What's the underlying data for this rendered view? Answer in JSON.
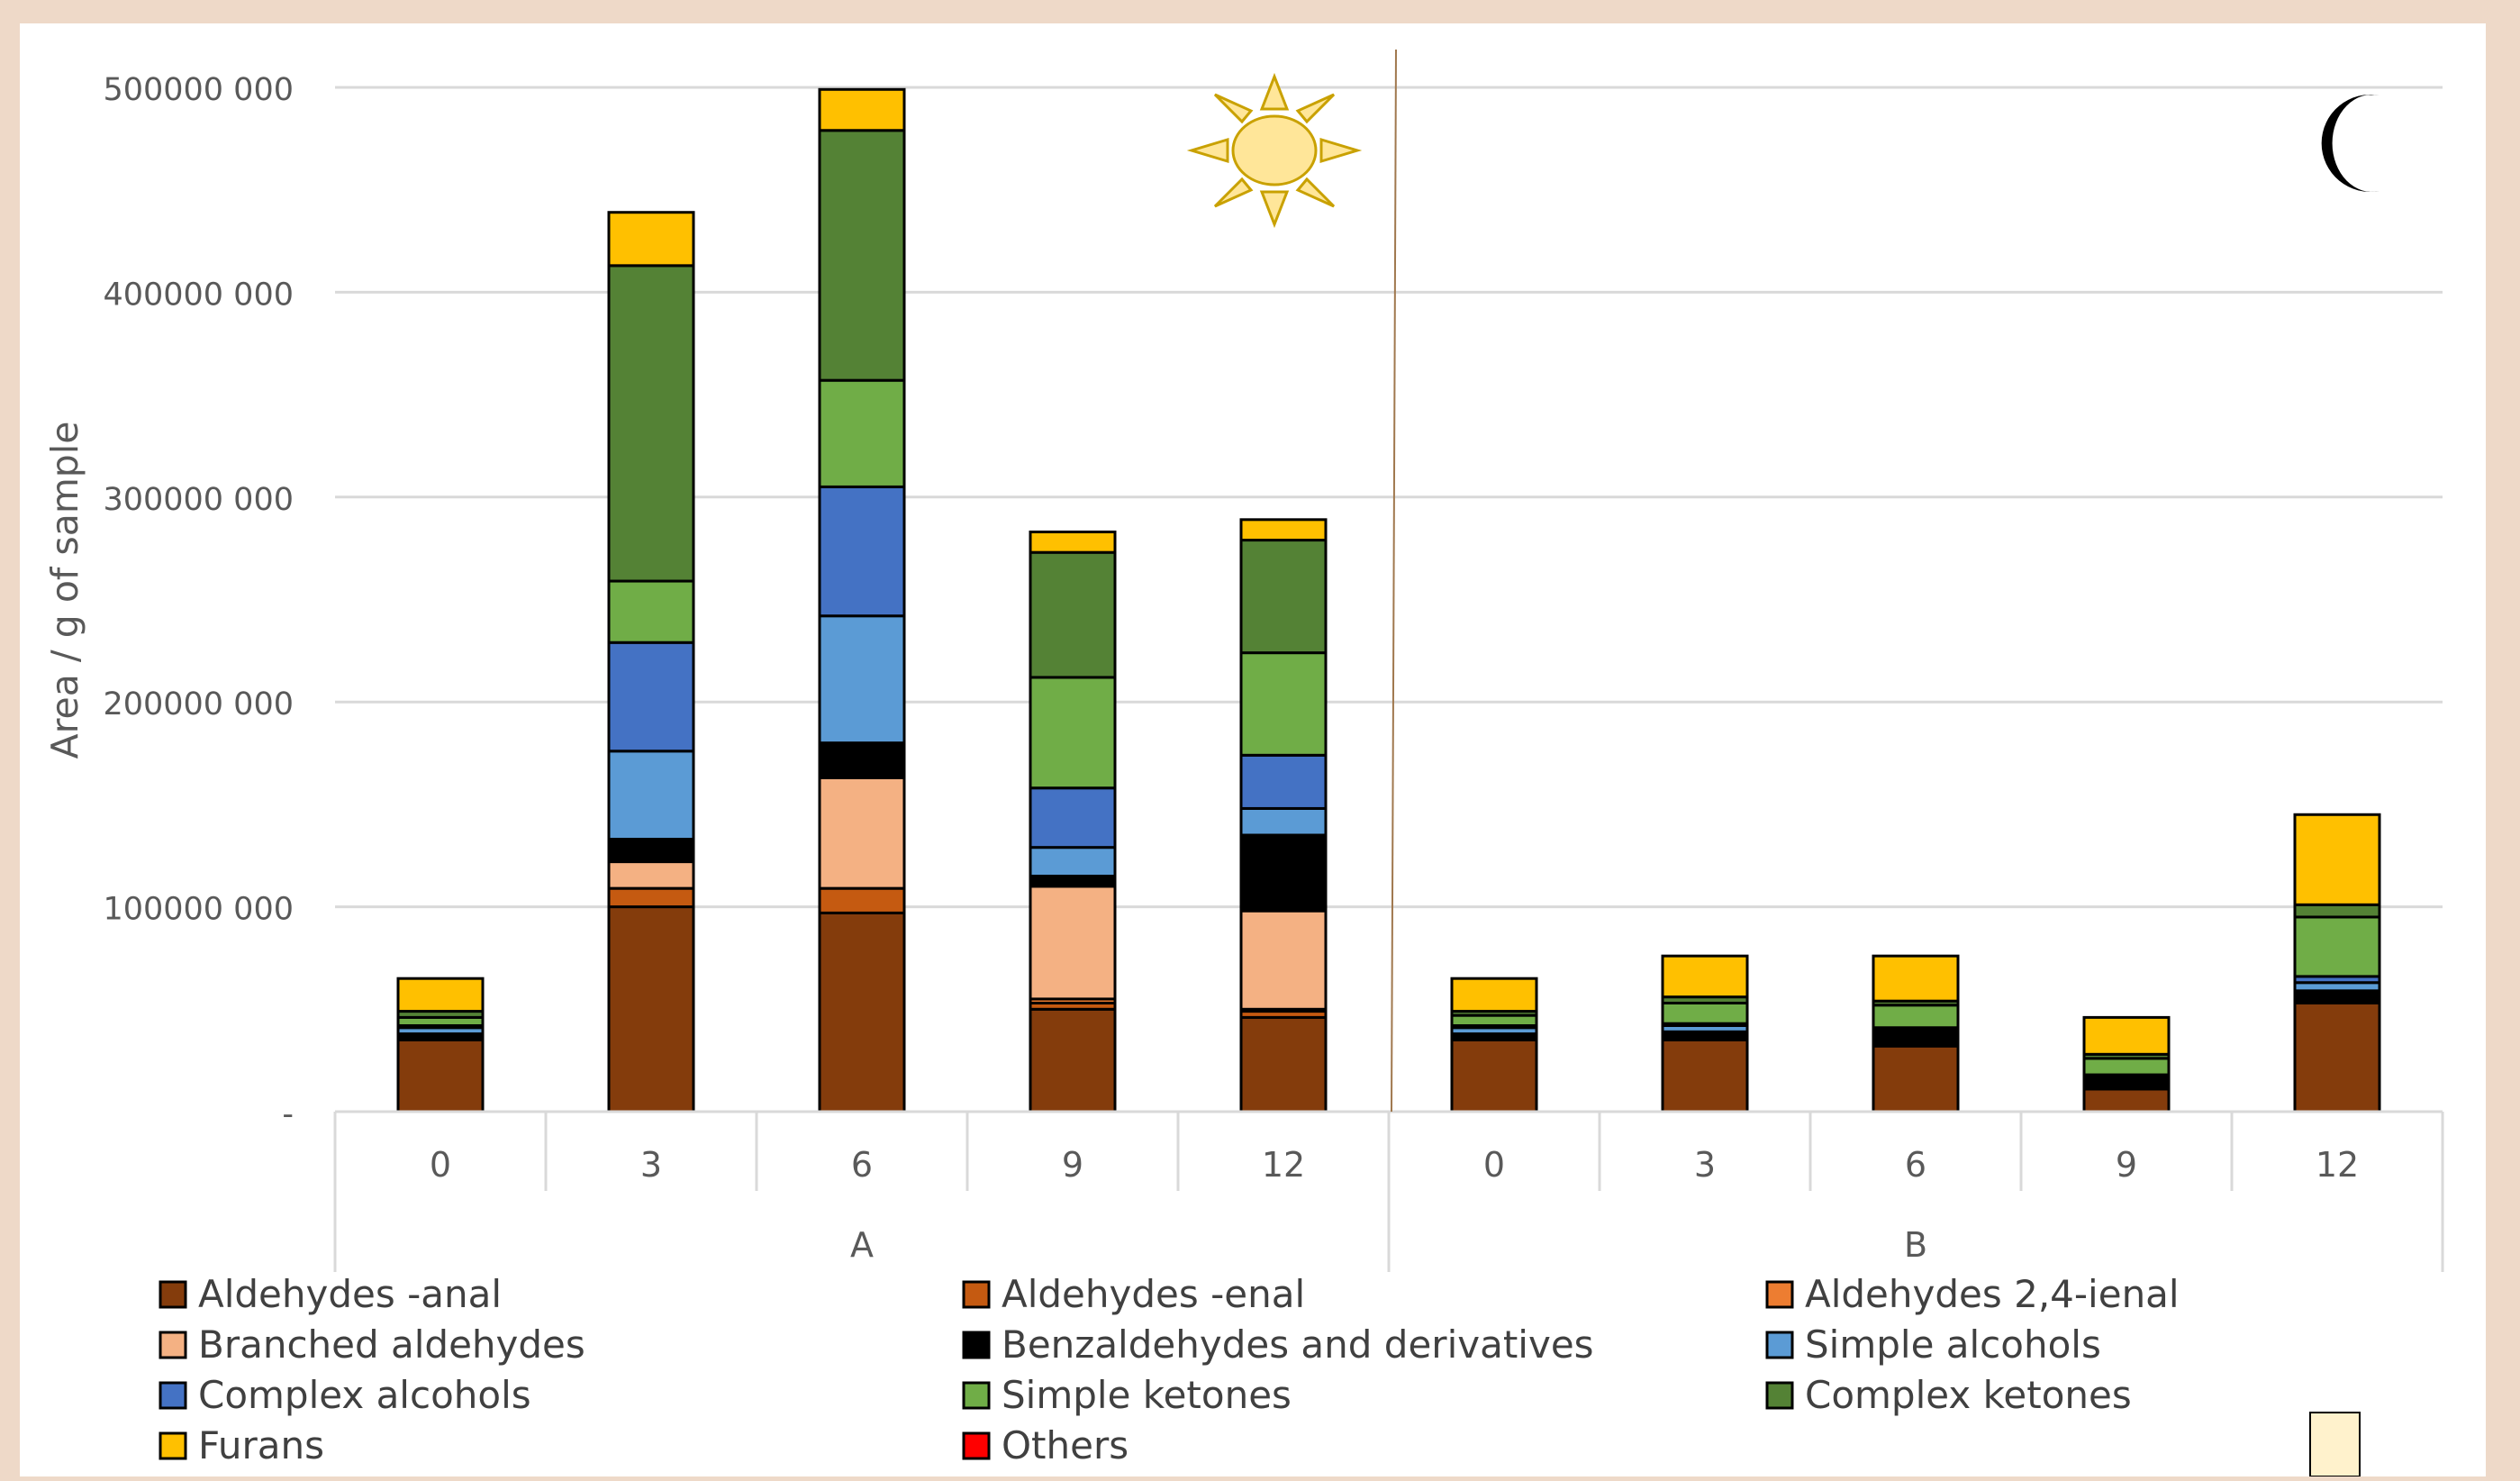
{
  "chart_data": {
    "type": "bar",
    "stacked": true,
    "title": "",
    "xlabel": "",
    "ylabel": "Area / g of sample",
    "ylim": [
      0,
      500000000
    ],
    "y_ticks": [
      {
        "value": 0,
        "label": "-"
      },
      {
        "value": 100000000,
        "label": "100000 000"
      },
      {
        "value": 200000000,
        "label": "200000 000"
      },
      {
        "value": 300000000,
        "label": "300000 000"
      },
      {
        "value": 400000000,
        "label": "400000 000"
      },
      {
        "value": 500000000,
        "label": "500000 000"
      }
    ],
    "grid": true,
    "legend_position": "bottom",
    "groups": [
      {
        "label": "A",
        "categories": [
          "0",
          "3",
          "6",
          "9",
          "12"
        ]
      },
      {
        "label": "B",
        "categories": [
          "0",
          "3",
          "6",
          "9",
          "12"
        ]
      }
    ],
    "categories": [
      "A-0",
      "A-3",
      "A-6",
      "A-9",
      "A-12",
      "B-0",
      "B-3",
      "B-6",
      "B-9",
      "B-12"
    ],
    "series": [
      {
        "name": "Aldehydes -anal",
        "color": "#843c0c",
        "values": [
          35000000,
          100000000,
          97000000,
          50000000,
          46000000,
          35000000,
          35000000,
          32000000,
          11000000,
          53000000
        ]
      },
      {
        "name": "Aldehydes -enal",
        "color": "#c55a11",
        "values": [
          0,
          9000000,
          12000000,
          3000000,
          3000000,
          0,
          0,
          0,
          0,
          0
        ]
      },
      {
        "name": "Aldehydes 2,4-ienal",
        "color": "#ed7d31",
        "values": [
          0,
          0,
          0,
          2000000,
          1000000,
          0,
          0,
          0,
          0,
          0
        ]
      },
      {
        "name": "Branched aldehydes",
        "color": "#f4b183",
        "values": [
          0,
          13000000,
          54000000,
          55000000,
          48000000,
          0,
          0,
          0,
          0,
          0
        ]
      },
      {
        "name": "Benzaldehydes and derivatives",
        "color": "#000000",
        "values": [
          3000000,
          11000000,
          17000000,
          5000000,
          37000000,
          3000000,
          4000000,
          7000000,
          5000000,
          6000000
        ]
      },
      {
        "name": "Simple alcohols",
        "color": "#5b9bd5",
        "values": [
          3000000,
          43000000,
          62000000,
          14000000,
          13000000,
          3000000,
          3000000,
          1000000,
          1000000,
          4000000
        ]
      },
      {
        "name": "Complex alcohols",
        "color": "#4472c4",
        "values": [
          1000000,
          53000000,
          63000000,
          29000000,
          26000000,
          1000000,
          1000000,
          1000000,
          1000000,
          3000000
        ]
      },
      {
        "name": "Simple ketones",
        "color": "#70ad47",
        "values": [
          4000000,
          30000000,
          52000000,
          54000000,
          50000000,
          5000000,
          10000000,
          11000000,
          8000000,
          29000000
        ]
      },
      {
        "name": "Complex ketones",
        "color": "#548235",
        "values": [
          3000000,
          154000000,
          122000000,
          61000000,
          55000000,
          2000000,
          3000000,
          2000000,
          2000000,
          6000000
        ]
      },
      {
        "name": "Furans",
        "color": "#ffc000",
        "values": [
          16000000,
          26000000,
          20000000,
          10000000,
          10000000,
          16000000,
          20000000,
          22000000,
          18000000,
          44000000
        ]
      },
      {
        "name": "Others",
        "color": "#ff0000",
        "values": [
          0,
          0,
          0,
          0,
          0,
          0,
          0,
          0,
          0,
          0
        ]
      }
    ],
    "colors": {
      "background": "#eed9c8",
      "plot_background": "#ffffff",
      "gridline": "#d9d9d9",
      "axis_text": "#595959",
      "divider": "#a0784e",
      "sun_fill": "#ffe699",
      "sun_stroke": "#c9a100",
      "moon": "#000000"
    }
  }
}
